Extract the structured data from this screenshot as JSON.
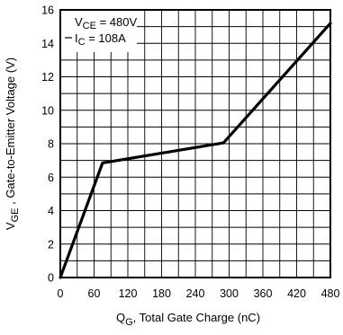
{
  "chart_data": {
    "type": "line",
    "xlabel": {
      "symbol": "Q",
      "subscript": "G",
      "text": ", Total Gate Charge (nC)"
    },
    "ylabel": {
      "symbol": "V",
      "subscript": "GE",
      "text": " , Gate-to-Emitter Voltage (V)"
    },
    "xlim": [
      0,
      480
    ],
    "ylim": [
      0,
      16
    ],
    "xticks": [
      0,
      60,
      120,
      180,
      240,
      300,
      360,
      420,
      480
    ],
    "xtick_labels": [
      "0",
      "60",
      "120",
      "180",
      "240",
      "300",
      "360",
      "420",
      "480"
    ],
    "yticks": [
      0,
      2,
      4,
      6,
      8,
      10,
      12,
      14,
      16
    ],
    "ytick_labels": [
      "0",
      "2",
      "4",
      "6",
      "8",
      "10",
      "12",
      "14",
      "16"
    ],
    "x_minor_step": 30,
    "y_minor_step": 1,
    "grid": true,
    "series": [
      {
        "x": [
          0,
          75,
          290,
          480
        ],
        "y": [
          0,
          6.85,
          8.05,
          15.2
        ]
      }
    ],
    "annotations": [
      {
        "symbol": "V",
        "subscript": "CE",
        "text": " = 480V"
      },
      {
        "symbol": "I",
        "subscript": "C",
        "text": " = 108A"
      }
    ],
    "colors": {
      "line": "#000000",
      "grid": "#000000"
    }
  }
}
